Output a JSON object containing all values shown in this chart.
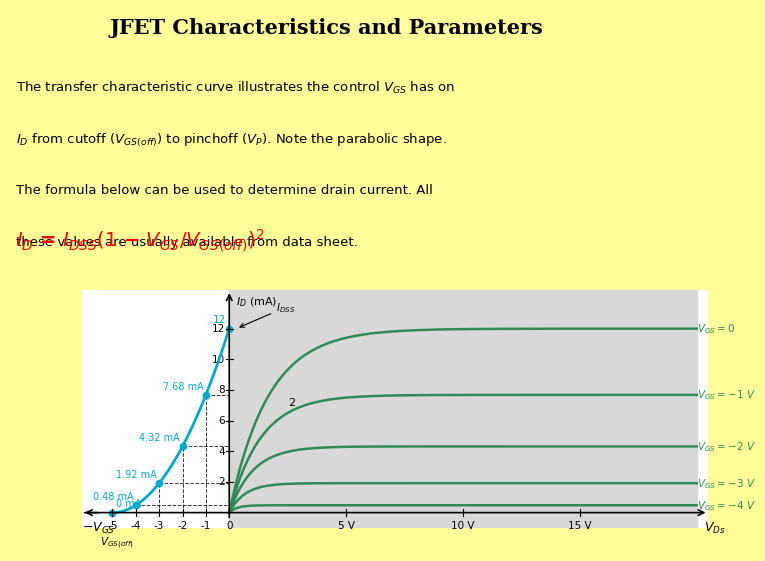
{
  "title": "JFET Characteristics and Parameters",
  "background_color": "#FFFF99",
  "transfer_curve_color": "#00AACC",
  "drain_curve_color": "#2E8B57",
  "IDSS": 12,
  "VGS_off": -5,
  "vgs_values": [
    0,
    -1,
    -2,
    -3,
    -4
  ],
  "graph_bg_color": "#D8D8D8",
  "transfer_points_vgs": [
    -5,
    -4,
    -3,
    -2,
    -1,
    0
  ],
  "transfer_points_id": [
    0,
    0.48,
    1.92,
    4.32,
    7.68,
    12
  ],
  "annotation_labels": {
    "-4": "0.48 mA",
    "-3": "1.92 mA",
    "-2": "4.32 mA",
    "-1": "7.68 mA"
  },
  "vgs_curve_labels": {
    "0": "V_GS = 0",
    "-1": "V_GS = -1 V",
    "-2": "V_GS = -2 V",
    "-3": "V_GS = -3 V",
    "-4": "V_GS = -4 V"
  }
}
